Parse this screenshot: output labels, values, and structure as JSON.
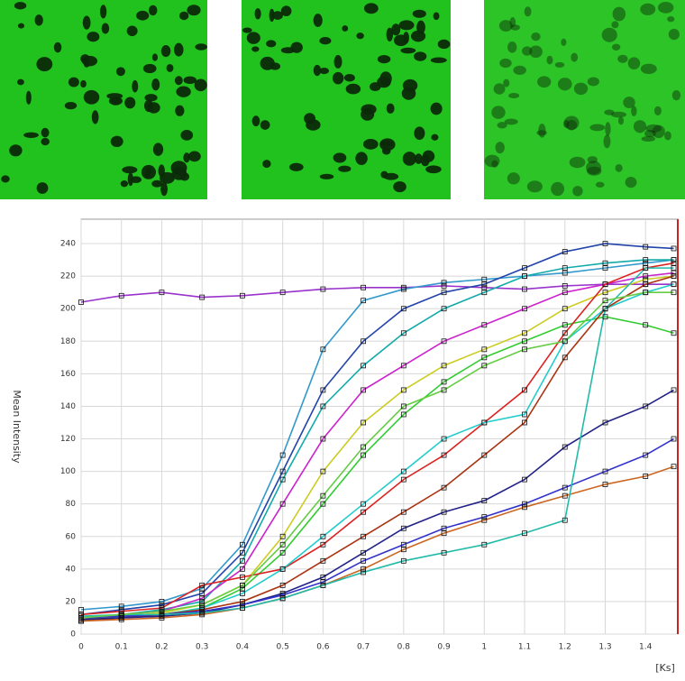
{
  "chart_data": {
    "type": "line",
    "y_label": "Mean Intensity",
    "x_label": "[Ks]",
    "x": [
      0,
      0.1,
      0.2,
      0.3,
      0.4,
      0.5,
      0.6,
      0.7,
      0.8,
      0.9,
      1,
      1.1,
      1.2,
      1.3,
      1.4,
      1.47
    ],
    "series": [
      {
        "color": "#9933cc",
        "values": [
          204,
          208,
          210,
          207,
          208,
          210,
          212,
          213,
          213,
          214,
          213,
          212,
          214,
          215,
          215,
          215
        ]
      },
      {
        "color": "#3399cc",
        "values": [
          15,
          17,
          20,
          28,
          55,
          110,
          175,
          205,
          212,
          216,
          218,
          220,
          222,
          225,
          228,
          230
        ]
      },
      {
        "color": "#2244aa",
        "values": [
          12,
          15,
          18,
          25,
          50,
          100,
          150,
          180,
          200,
          210,
          215,
          225,
          235,
          240,
          238,
          237
        ]
      },
      {
        "color": "#11aaaa",
        "values": [
          10,
          12,
          15,
          20,
          45,
          95,
          140,
          165,
          185,
          200,
          210,
          220,
          225,
          228,
          230,
          230
        ]
      },
      {
        "color": "#cc22cc",
        "values": [
          10,
          12,
          14,
          22,
          40,
          80,
          120,
          150,
          165,
          180,
          190,
          200,
          210,
          215,
          220,
          222
        ]
      },
      {
        "color": "#cccc22",
        "values": [
          9,
          11,
          13,
          18,
          30,
          60,
          100,
          130,
          150,
          165,
          175,
          185,
          200,
          210,
          218,
          220
        ]
      },
      {
        "color": "#33cc33",
        "values": [
          8,
          10,
          12,
          16,
          28,
          50,
          80,
          110,
          135,
          155,
          170,
          180,
          190,
          195,
          190,
          185
        ]
      },
      {
        "color": "#dd2222",
        "values": [
          12,
          14,
          16,
          30,
          35,
          40,
          55,
          75,
          95,
          110,
          130,
          150,
          185,
          215,
          225,
          228
        ]
      },
      {
        "color": "#22cccc",
        "values": [
          10,
          11,
          12,
          16,
          25,
          40,
          60,
          80,
          100,
          120,
          130,
          135,
          180,
          200,
          210,
          215
        ]
      },
      {
        "color": "#aa3311",
        "values": [
          8,
          10,
          12,
          15,
          20,
          30,
          45,
          60,
          75,
          90,
          110,
          130,
          170,
          200,
          215,
          220
        ]
      },
      {
        "color": "#222288",
        "values": [
          9,
          10,
          11,
          13,
          18,
          25,
          35,
          50,
          65,
          75,
          82,
          95,
          115,
          130,
          140,
          150
        ]
      },
      {
        "color": "#3333cc",
        "values": [
          10,
          11,
          12,
          14,
          18,
          24,
          32,
          45,
          55,
          65,
          72,
          80,
          90,
          100,
          110,
          120
        ]
      },
      {
        "color": "#cc6622",
        "values": [
          8,
          9,
          10,
          12,
          16,
          22,
          30,
          40,
          52,
          62,
          70,
          78,
          85,
          92,
          97,
          103
        ]
      },
      {
        "color": "#22bbaa",
        "values": [
          11,
          12,
          12,
          13,
          16,
          22,
          30,
          38,
          45,
          50,
          55,
          62,
          70,
          200,
          225,
          225
        ]
      },
      {
        "color": "#66cc44",
        "values": [
          10,
          12,
          14,
          18,
          30,
          55,
          85,
          115,
          140,
          150,
          165,
          175,
          180,
          205,
          210,
          210
        ]
      }
    ],
    "xlim": [
      0,
      1.48
    ],
    "ylim": [
      0,
      255
    ],
    "xticks": [
      0,
      0.1,
      0.2,
      0.3,
      0.4,
      0.5,
      0.6,
      0.7,
      0.8,
      0.9,
      1,
      1.1,
      1.2,
      1.3,
      1.4
    ],
    "yticks": [
      0,
      20,
      40,
      60,
      80,
      100,
      120,
      140,
      160,
      180,
      200,
      220,
      240
    ],
    "grid": true
  }
}
